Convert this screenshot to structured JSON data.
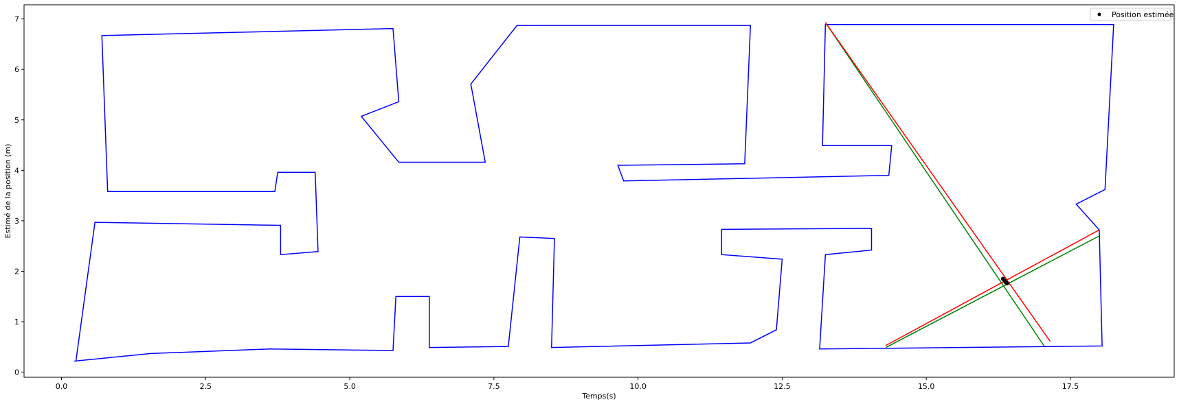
{
  "chart_data": {
    "type": "line",
    "title": "",
    "xlabel": "Temps(s)",
    "ylabel": "Estimé de la position (m)",
    "xlim": [
      -0.65,
      19.3
    ],
    "ylim": [
      -0.1,
      7.28
    ],
    "xticks": [
      0.0,
      2.5,
      5.0,
      7.5,
      10.0,
      12.5,
      15.0,
      17.5
    ],
    "xtick_labels": [
      "0.0",
      "2.5",
      "5.0",
      "7.5",
      "10.0",
      "12.5",
      "15.0",
      "17.5"
    ],
    "yticks": [
      0,
      1,
      2,
      3,
      4,
      5,
      6,
      7
    ],
    "ytick_labels": [
      "0",
      "1",
      "2",
      "3",
      "4",
      "5",
      "6",
      "7"
    ],
    "grid": false,
    "legend": {
      "placement": "top-right",
      "entries": [
        "Position estimée"
      ]
    },
    "colors": {
      "walls": "#0000ff",
      "red_rays": "#ff0000",
      "green_rays": "#008000",
      "points": "#000000"
    },
    "walls": [
      [
        [
          0.22,
          0.22
        ],
        [
          1.55,
          0.37
        ],
        [
          3.6,
          0.46
        ],
        [
          5.75,
          0.43
        ],
        [
          5.8,
          1.5
        ],
        [
          6.38,
          1.5
        ],
        [
          6.38,
          0.49
        ],
        [
          7.75,
          0.51
        ],
        [
          7.95,
          2.68
        ],
        [
          8.55,
          2.65
        ],
        [
          8.5,
          0.49
        ],
        [
          11.95,
          0.58
        ],
        [
          12.4,
          0.84
        ],
        [
          12.5,
          2.24
        ],
        [
          11.45,
          2.33
        ],
        [
          11.45,
          2.83
        ],
        [
          14.05,
          2.85
        ],
        [
          14.05,
          2.42
        ],
        [
          13.25,
          2.33
        ],
        [
          13.15,
          0.46
        ],
        [
          18.05,
          0.52
        ],
        [
          18.0,
          2.82
        ],
        [
          17.6,
          3.33
        ],
        [
          18.1,
          3.62
        ],
        [
          18.25,
          6.89
        ],
        [
          13.25,
          6.89
        ],
        [
          13.2,
          4.49
        ],
        [
          14.4,
          4.49
        ],
        [
          14.35,
          3.9
        ],
        [
          9.75,
          3.79
        ],
        [
          9.65,
          4.1
        ],
        [
          11.85,
          4.13
        ],
        [
          11.95,
          6.87
        ],
        [
          7.9,
          6.87
        ],
        [
          7.1,
          5.71
        ],
        [
          7.35,
          4.16
        ],
        [
          5.85,
          4.16
        ],
        [
          5.2,
          5.07
        ],
        [
          5.85,
          5.36
        ],
        [
          5.75,
          6.81
        ],
        [
          0.7,
          6.67
        ],
        [
          0.8,
          3.58
        ],
        [
          3.7,
          3.58
        ],
        [
          3.75,
          3.96
        ],
        [
          4.4,
          3.96
        ],
        [
          4.45,
          2.39
        ],
        [
          3.8,
          2.33
        ],
        [
          3.8,
          2.91
        ],
        [
          0.58,
          2.97
        ],
        [
          0.25,
          0.22
        ]
      ]
    ],
    "red_rays": [
      [
        [
          13.25,
          6.93
        ],
        [
          17.15,
          0.61
        ]
      ],
      [
        [
          14.3,
          0.53
        ],
        [
          18.0,
          2.82
        ]
      ]
    ],
    "green_rays": [
      [
        [
          13.25,
          6.93
        ],
        [
          17.05,
          0.51
        ]
      ],
      [
        [
          14.3,
          0.49
        ],
        [
          18.0,
          2.7
        ]
      ]
    ],
    "points": {
      "name": "Position estimée",
      "x": [
        16.33,
        16.36,
        16.38,
        16.4
      ],
      "y": [
        1.85,
        1.81,
        1.78,
        1.76
      ]
    }
  }
}
